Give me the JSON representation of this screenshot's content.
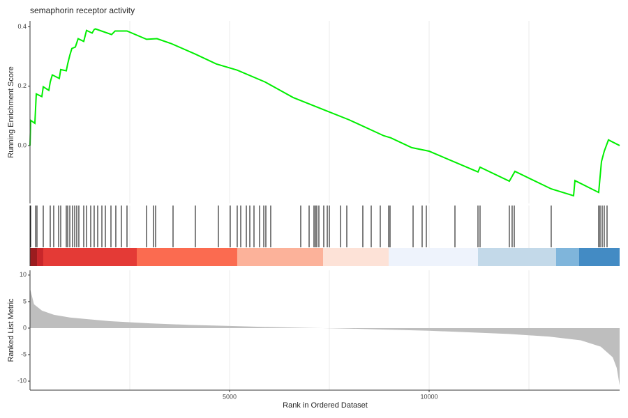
{
  "chart_data": [
    {
      "type": "line",
      "title": "semaphorin receptor activity",
      "ylabel": "Running Enrichment Score",
      "color": "#00ee00",
      "xlim": [
        0,
        14773
      ],
      "ylim": [
        -0.195,
        0.42
      ],
      "yticks": [
        {
          "value": 0.0,
          "label": "0.0"
        },
        0.2,
        0.4
      ],
      "xgrid": [
        2500,
        5000,
        7500,
        10000,
        12500
      ],
      "x": [
        0,
        17,
        122,
        157,
        297,
        332,
        472,
        507,
        559,
        734,
        769,
        909,
        944,
        997,
        1049,
        1136,
        1206,
        1346,
        1416,
        1556,
        1608,
        1640,
        2045,
        2133,
        2430,
        2920,
        3182,
        3531,
        4143,
        4668,
        5192,
        5892,
        6591,
        7465,
        7990,
        8864,
        9038,
        9563,
        10000,
        10612,
        11224,
        11276,
        12010,
        12150,
        13059,
        13619,
        13654,
        14248,
        14318,
        14388,
        14493,
        14773
      ],
      "values": [
        0.0,
        0.085,
        0.075,
        0.174,
        0.165,
        0.198,
        0.186,
        0.214,
        0.238,
        0.226,
        0.256,
        0.252,
        0.275,
        0.304,
        0.327,
        0.332,
        0.36,
        0.351,
        0.388,
        0.379,
        0.391,
        0.393,
        0.374,
        0.386,
        0.386,
        0.358,
        0.36,
        0.344,
        0.308,
        0.275,
        0.254,
        0.214,
        0.162,
        0.115,
        0.087,
        0.033,
        0.026,
        -0.007,
        -0.019,
        -0.054,
        -0.089,
        -0.073,
        -0.12,
        -0.087,
        -0.146,
        -0.169,
        -0.118,
        -0.158,
        -0.054,
        -0.019,
        0.019,
        0.0
      ]
    },
    {
      "type": "rug",
      "xlim": [
        0,
        14773
      ],
      "xgrid": [
        2500,
        5000,
        7500,
        10000,
        12500
      ],
      "hits": [
        17,
        140,
        175,
        332,
        507,
        594,
        717,
        769,
        909,
        944,
        997,
        1066,
        1119,
        1171,
        1224,
        1346,
        1416,
        1521,
        1608,
        1696,
        1801,
        1888,
        2028,
        2150,
        2290,
        2430,
        2920,
        3094,
        3147,
        3584,
        4143,
        4720,
        5017,
        5192,
        5280,
        5420,
        5507,
        5612,
        5752,
        5857,
        5909,
        6031,
        6783,
        6993,
        7115,
        7150,
        7185,
        7238,
        7360,
        7448,
        7500,
        7780,
        7937,
        8339,
        8549,
        8776,
        8986,
        9021,
        9598,
        9825,
        9930,
        10647,
        11224,
        11276,
        12010,
        12080,
        12133,
        13059,
        14248,
        14283,
        14336,
        14388,
        14458
      ],
      "band_breaks": [
        0,
        175,
        332,
        2675,
        5192,
        7343,
        8986,
        11224,
        13182,
        13759,
        14773
      ],
      "band_colors": [
        "#9b1c1f",
        "#c8262a",
        "#e43a36",
        "#fb6b50",
        "#fcb29a",
        "#fde2d7",
        "#eef3fc",
        "#c3d9e9",
        "#7fb5db",
        "#438bc4"
      ]
    },
    {
      "type": "area",
      "ylabel": "Ranked List Metric",
      "xlabel": "Rank in Ordered Dataset",
      "color": "#bebebe",
      "xlim": [
        0,
        14773
      ],
      "ylim": [
        -11.7,
        10.9
      ],
      "yticks": [
        -10,
        -5,
        0,
        5,
        10
      ],
      "xticks": [
        5000,
        10000
      ],
      "xgrid": [
        2500,
        5000,
        7500,
        10000,
        12500
      ],
      "x": [
        0,
        100,
        300,
        600,
        1000,
        2000,
        3000,
        4000,
        5000,
        6000,
        7000,
        8000,
        9000,
        10000,
        11000,
        12000,
        13000,
        13800,
        14300,
        14600,
        14700,
        14773
      ],
      "values": [
        7.5,
        4.5,
        3.3,
        2.5,
        2.0,
        1.3,
        0.9,
        0.6,
        0.4,
        0.2,
        0.05,
        -0.1,
        -0.3,
        -0.5,
        -0.8,
        -1.1,
        -1.6,
        -2.3,
        -3.5,
        -5.5,
        -7.5,
        -10.8
      ]
    }
  ]
}
